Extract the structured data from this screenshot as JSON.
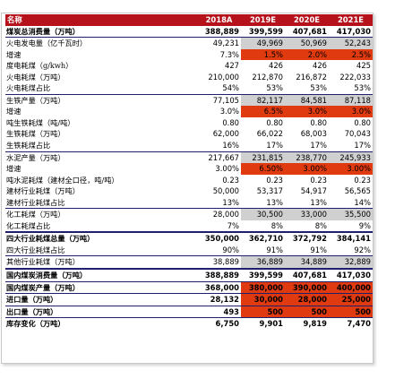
{
  "headers": [
    "名称",
    "2018A",
    "2019E",
    "2020E",
    "2021E"
  ],
  "rows": [
    {
      "label": "煤炭总消费量（万吨）",
      "values": [
        "388,889",
        "399,599",
        "407,681",
        "417,030"
      ],
      "bold": true,
      "hl": [],
      "gray": [],
      "style": "bb"
    },
    {
      "label": "火电发电量（亿千瓦时）",
      "values": [
        "49,231",
        "49,969",
        "50,969",
        "52,243"
      ],
      "bold": false,
      "hl": [],
      "gray": [
        1,
        2,
        3
      ],
      "style": ""
    },
    {
      "label": "增速",
      "values": [
        "7.3%",
        "1.5%",
        "2.0%",
        "2.5%"
      ],
      "bold": false,
      "hl": [
        1,
        2,
        3
      ],
      "gray": [],
      "style": ""
    },
    {
      "label": "度电耗煤（g/kwh）",
      "values": [
        "427",
        "426",
        "426",
        "425"
      ],
      "bold": false,
      "hl": [],
      "gray": [],
      "style": ""
    },
    {
      "label": "火电耗煤（万吨）",
      "values": [
        "210,000",
        "212,870",
        "216,872",
        "222,033"
      ],
      "bold": false,
      "hl": [],
      "gray": [],
      "style": ""
    },
    {
      "label": "火电耗煤占比",
      "values": [
        "54%",
        "53%",
        "53%",
        "53%"
      ],
      "bold": false,
      "hl": [],
      "gray": [],
      "style": "bb"
    },
    {
      "label": "生铁产量（万吨）",
      "values": [
        "77,105",
        "82,117",
        "84,581",
        "87,118"
      ],
      "bold": false,
      "hl": [],
      "gray": [
        1,
        2,
        3
      ],
      "style": ""
    },
    {
      "label": "增速",
      "values": [
        "3.0%",
        "6.5%",
        "3.0%",
        "3.0%"
      ],
      "bold": false,
      "hl": [
        1,
        2,
        3
      ],
      "gray": [],
      "style": ""
    },
    {
      "label": "吨生铁耗煤（吨/吨）",
      "values": [
        "0.80",
        "0.80",
        "0.80",
        "0.80"
      ],
      "bold": false,
      "hl": [],
      "gray": [],
      "style": ""
    },
    {
      "label": "生铁耗煤（万吨）",
      "values": [
        "62,000",
        "66,022",
        "68,003",
        "70,043"
      ],
      "bold": false,
      "hl": [],
      "gray": [],
      "style": ""
    },
    {
      "label": "生铁耗煤占比",
      "values": [
        "16%",
        "17%",
        "17%",
        "17%"
      ],
      "bold": false,
      "hl": [],
      "gray": [],
      "style": "bb"
    },
    {
      "label": "水泥产量（万吨）",
      "values": [
        "217,667",
        "231,815",
        "238,770",
        "245,933"
      ],
      "bold": false,
      "hl": [],
      "gray": [
        1,
        2,
        3
      ],
      "style": ""
    },
    {
      "label": "增速",
      "values": [
        "3.00%",
        "6.50%",
        "3.00%",
        "3.00%"
      ],
      "bold": false,
      "hl": [
        1,
        2,
        3
      ],
      "gray": [],
      "style": ""
    },
    {
      "label": "吨水泥耗煤（建材全口径，吨/吨）",
      "values": [
        "0.23",
        "0.23",
        "0.23",
        "0.23"
      ],
      "bold": false,
      "hl": [],
      "gray": [],
      "style": ""
    },
    {
      "label": "建材行业耗煤（万吨）",
      "values": [
        "50,000",
        "53,317",
        "54,917",
        "56,565"
      ],
      "bold": false,
      "hl": [],
      "gray": [],
      "style": ""
    },
    {
      "label": "建材行业耗煤占比",
      "values": [
        "13%",
        "13%",
        "13%",
        "14%"
      ],
      "bold": false,
      "hl": [],
      "gray": [],
      "style": "bb"
    },
    {
      "label": "化工耗煤（万吨）",
      "values": [
        "28,000",
        "30,500",
        "33,000",
        "35,500"
      ],
      "bold": false,
      "hl": [],
      "gray": [
        1,
        2,
        3
      ],
      "style": ""
    },
    {
      "label": "化工耗煤占比",
      "values": [
        "7%",
        "8%",
        "8%",
        "9%"
      ],
      "bold": false,
      "hl": [],
      "gray": [],
      "style": "bbThick"
    },
    {
      "label": "四大行业耗煤总量（万吨）",
      "values": [
        "350,000",
        "362,710",
        "372,792",
        "384,141"
      ],
      "bold": true,
      "hl": [],
      "gray": [],
      "style": ""
    },
    {
      "label": "四大行业耗煤占比",
      "values": [
        "90%",
        "91%",
        "91%",
        "92%"
      ],
      "bold": false,
      "hl": [],
      "gray": [],
      "style": "bb"
    },
    {
      "label": "其他行业耗煤（万吨）",
      "values": [
        "38,889",
        "36,889",
        "34,889",
        "32,889"
      ],
      "bold": false,
      "hl": [],
      "gray": [
        1,
        2,
        3
      ],
      "style": "bbThick"
    },
    {
      "label": "国内煤炭消费量（万吨）",
      "values": [
        "388,889",
        "399,599",
        "407,681",
        "417,030"
      ],
      "bold": true,
      "hl": [],
      "gray": [],
      "style": "bb"
    },
    {
      "label": "国内煤炭产量（万吨）",
      "values": [
        "368,000",
        "380,000",
        "390,000",
        "400,000"
      ],
      "bold": true,
      "hl": [
        1,
        2,
        3
      ],
      "gray": [],
      "style": "bb"
    },
    {
      "label": "进口量（万吨）",
      "values": [
        "28,132",
        "30,000",
        "28,000",
        "25,000"
      ],
      "bold": true,
      "hl": [
        1,
        2,
        3
      ],
      "gray": [],
      "style": "bb"
    },
    {
      "label": "出口量（万吨）",
      "values": [
        "493",
        "500",
        "500",
        "500"
      ],
      "bold": true,
      "hl": [
        1,
        2,
        3
      ],
      "gray": [],
      "style": "bb"
    },
    {
      "label": "库存变化（万吨）",
      "values": [
        "6,750",
        "9,901",
        "9,819",
        "7,470"
      ],
      "bold": true,
      "hl": [],
      "gray": [],
      "style": ""
    }
  ]
}
